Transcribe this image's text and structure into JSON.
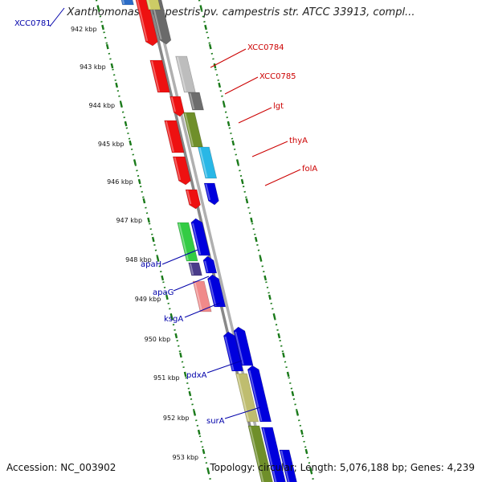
{
  "title": "Xanthomonas campestris pv. campestris str. ATCC 33913, compl...",
  "footer": {
    "accession": "Accession: NC_003902",
    "topology": "Topology: circular; Length: 5,076,188 bp; Genes: 4,239"
  },
  "colors": {
    "forward_label": "#cc0000",
    "reverse_label": "#0000aa",
    "axis": "#888888",
    "tick": "#1a7a1a"
  },
  "kbp_ticks": [
    "942 kbp",
    "943 kbp",
    "944 kbp",
    "945 kbp",
    "946 kbp",
    "947 kbp",
    "948 kbp",
    "949 kbp",
    "950 kbp",
    "951 kbp",
    "952 kbp",
    "953 kbp"
  ],
  "features": [
    {
      "label": "XCC0781",
      "strand": "reverse"
    },
    {
      "label": "XCC0784",
      "strand": "forward"
    },
    {
      "label": "XCC0785",
      "strand": "forward"
    },
    {
      "label": "lgt",
      "strand": "forward"
    },
    {
      "label": "thyA",
      "strand": "forward"
    },
    {
      "label": "folA",
      "strand": "forward"
    },
    {
      "label": "apaH",
      "strand": "reverse"
    },
    {
      "label": "apaG",
      "strand": "reverse"
    },
    {
      "label": "ksgA",
      "strand": "reverse"
    },
    {
      "label": "pdxA",
      "strand": "reverse"
    },
    {
      "label": "surA",
      "strand": "reverse"
    }
  ]
}
